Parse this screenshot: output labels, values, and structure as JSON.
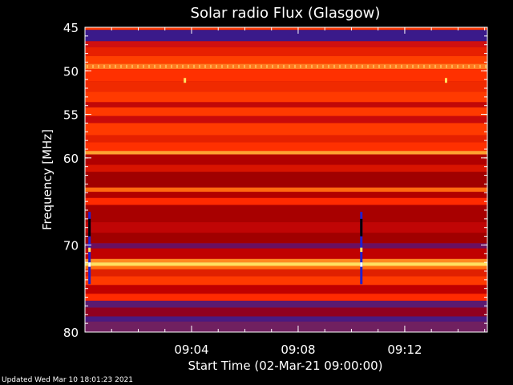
{
  "chart_data": {
    "type": "heatmap",
    "title": "Solar radio Flux (Glasgow)",
    "xlabel": "Start Time (02-Mar-21 09:00:00)",
    "ylabel": "Frequency [MHz]",
    "x_range_minutes": [
      0,
      15.1
    ],
    "ylim": [
      45,
      80
    ],
    "y_axis_inverted": true,
    "x_ticks": [
      {
        "minute": 4,
        "label": "09:04"
      },
      {
        "minute": 8,
        "label": "09:08"
      },
      {
        "minute": 12,
        "label": "09:12"
      }
    ],
    "y_ticks": [
      {
        "value": 45,
        "label": "45"
      },
      {
        "value": 50,
        "label": "50"
      },
      {
        "value": 55,
        "label": "55"
      },
      {
        "value": 60,
        "label": "60"
      },
      {
        "value": 70,
        "label": "70"
      },
      {
        "value": 80,
        "label": "80"
      }
    ],
    "colors": {
      "background": "#000000",
      "low": "#3a1a8a",
      "mid": "#c00000",
      "high": "#ff3a00",
      "peak": "#ffe060"
    },
    "bands": [
      {
        "from": 45.0,
        "to": 45.3,
        "color": "#ff3a00"
      },
      {
        "from": 45.3,
        "to": 46.6,
        "color": "#3a1a8a"
      },
      {
        "from": 46.6,
        "to": 47.3,
        "color": "#d01010"
      },
      {
        "from": 47.3,
        "to": 48.3,
        "color": "#e82000"
      },
      {
        "from": 48.3,
        "to": 49.2,
        "color": "#ff4000"
      },
      {
        "from": 49.2,
        "to": 49.8,
        "color": "#ff7a20"
      },
      {
        "from": 49.8,
        "to": 51.2,
        "color": "#ff3000"
      },
      {
        "from": 51.2,
        "to": 52.4,
        "color": "#f02a00"
      },
      {
        "from": 52.4,
        "to": 53.6,
        "color": "#ff3a00"
      },
      {
        "from": 53.6,
        "to": 54.2,
        "color": "#c00808"
      },
      {
        "from": 54.2,
        "to": 55.2,
        "color": "#ff3a00"
      },
      {
        "from": 55.2,
        "to": 56.0,
        "color": "#c80a0a"
      },
      {
        "from": 56.0,
        "to": 57.4,
        "color": "#ff3a00"
      },
      {
        "from": 57.4,
        "to": 58.2,
        "color": "#e52000"
      },
      {
        "from": 58.2,
        "to": 59.2,
        "color": "#ff3000"
      },
      {
        "from": 59.2,
        "to": 59.6,
        "color": "#ffa030"
      },
      {
        "from": 59.6,
        "to": 60.8,
        "color": "#b00000"
      },
      {
        "from": 60.8,
        "to": 61.6,
        "color": "#d81400"
      },
      {
        "from": 61.6,
        "to": 63.4,
        "color": "#a00000"
      },
      {
        "from": 63.4,
        "to": 63.9,
        "color": "#ff6a10"
      },
      {
        "from": 63.9,
        "to": 64.6,
        "color": "#b00000"
      },
      {
        "from": 64.6,
        "to": 65.4,
        "color": "#ff2a00"
      },
      {
        "from": 65.4,
        "to": 67.4,
        "color": "#a80000"
      },
      {
        "from": 67.4,
        "to": 68.6,
        "color": "#c00505"
      },
      {
        "from": 68.6,
        "to": 69.8,
        "color": "#a00000"
      },
      {
        "from": 69.8,
        "to": 70.4,
        "color": "#6a1060"
      },
      {
        "from": 70.4,
        "to": 71.6,
        "color": "#c00000"
      },
      {
        "from": 71.6,
        "to": 72.0,
        "color": "#ff8a20"
      },
      {
        "from": 72.0,
        "to": 72.4,
        "color": "#ffe060"
      },
      {
        "from": 72.4,
        "to": 72.8,
        "color": "#ff7010"
      },
      {
        "from": 72.8,
        "to": 73.6,
        "color": "#e02000"
      },
      {
        "from": 73.6,
        "to": 74.6,
        "color": "#ff3a00"
      },
      {
        "from": 74.6,
        "to": 75.6,
        "color": "#c00000"
      },
      {
        "from": 75.6,
        "to": 76.4,
        "color": "#ff2a00"
      },
      {
        "from": 76.4,
        "to": 77.2,
        "color": "#5a1a70"
      },
      {
        "from": 77.2,
        "to": 78.2,
        "color": "#900020"
      },
      {
        "from": 78.2,
        "to": 78.8,
        "color": "#4a1a80"
      },
      {
        "from": 78.8,
        "to": 80.0,
        "color": "#702060"
      }
    ],
    "spikes": [
      {
        "minute": 0.05,
        "from": 66.2,
        "to": 74.5
      },
      {
        "minute": 10.25,
        "from": 66.2,
        "to": 74.5
      }
    ],
    "dots": [
      {
        "minute": 3.75,
        "mhz": 51.1
      },
      {
        "minute": 13.55,
        "mhz": 51.1
      }
    ]
  },
  "footer": {
    "updated": "Updated Wed Mar 10 18:01:23 2021"
  }
}
